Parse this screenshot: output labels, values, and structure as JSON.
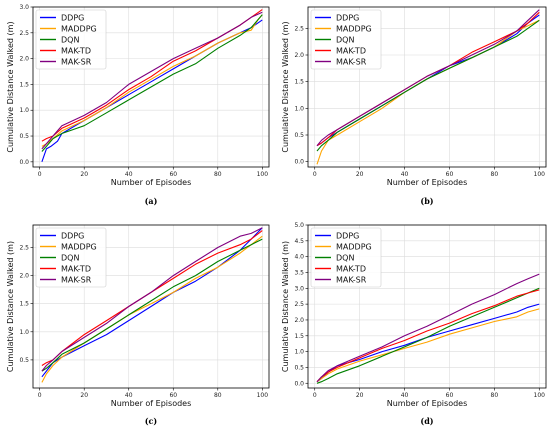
{
  "chart_data": [
    {
      "type": "line",
      "caption": "(a)",
      "xlabel": "Number of Episodes",
      "ylabel": "Cumulative Distance Walked (m)",
      "xlim": [
        -3,
        103
      ],
      "ylim": [
        -0.1,
        3.0
      ],
      "xticks": [
        0,
        20,
        40,
        60,
        80,
        100
      ],
      "yticks": [
        0.0,
        0.5,
        1.0,
        1.5,
        2.0,
        2.5,
        3.0
      ],
      "ytick_labels": [
        "0.0",
        "0.5",
        "1.0",
        "1.5",
        "2.0",
        "2.5",
        "3.0"
      ],
      "grid": true,
      "legend_position": "top-left",
      "series": [
        {
          "name": "DDPG",
          "color": "#0000ff",
          "x": [
            1,
            3,
            5,
            8,
            10,
            20,
            30,
            40,
            50,
            60,
            70,
            80,
            90,
            95,
            100
          ],
          "y": [
            0.0,
            0.25,
            0.3,
            0.4,
            0.55,
            0.8,
            1.05,
            1.3,
            1.55,
            1.8,
            2.05,
            2.3,
            2.5,
            2.6,
            2.75
          ]
        },
        {
          "name": "MADDPG",
          "color": "#ffa500",
          "x": [
            1,
            3,
            6,
            10,
            20,
            30,
            40,
            50,
            60,
            70,
            80,
            90,
            95,
            98,
            100
          ],
          "y": [
            0.3,
            0.35,
            0.45,
            0.6,
            0.8,
            1.05,
            1.35,
            1.6,
            1.85,
            2.05,
            2.3,
            2.5,
            2.55,
            2.75,
            2.85
          ]
        },
        {
          "name": "DQN",
          "color": "#008000",
          "x": [
            1,
            3,
            6,
            10,
            20,
            30,
            40,
            50,
            60,
            70,
            80,
            90,
            95,
            100
          ],
          "y": [
            0.2,
            0.3,
            0.45,
            0.55,
            0.7,
            0.95,
            1.2,
            1.45,
            1.7,
            1.9,
            2.2,
            2.45,
            2.6,
            2.85
          ]
        },
        {
          "name": "MAK-TD",
          "color": "#ff0000",
          "x": [
            1,
            3,
            6,
            10,
            20,
            30,
            40,
            50,
            60,
            70,
            80,
            90,
            95,
            100
          ],
          "y": [
            0.4,
            0.45,
            0.5,
            0.65,
            0.85,
            1.1,
            1.4,
            1.65,
            1.95,
            2.15,
            2.4,
            2.65,
            2.8,
            2.95
          ]
        },
        {
          "name": "MAK-SR",
          "color": "#800080",
          "x": [
            1,
            3,
            6,
            10,
            20,
            30,
            40,
            50,
            60,
            70,
            80,
            90,
            95,
            100
          ],
          "y": [
            0.25,
            0.35,
            0.5,
            0.7,
            0.9,
            1.15,
            1.5,
            1.75,
            2.0,
            2.2,
            2.4,
            2.65,
            2.8,
            2.9
          ]
        }
      ]
    },
    {
      "type": "line",
      "caption": "(b)",
      "xlabel": "Number of Episodes",
      "ylabel": "Cumulative Distance Walked (m)",
      "xlim": [
        -3,
        103
      ],
      "ylim": [
        -0.1,
        2.9
      ],
      "xticks": [
        0,
        20,
        40,
        60,
        80,
        100
      ],
      "yticks": [
        0.0,
        0.5,
        1.0,
        1.5,
        2.0,
        2.5
      ],
      "ytick_labels": [
        "0.0",
        "0.5",
        "1.0",
        "1.5",
        "2.0",
        "2.5"
      ],
      "grid": true,
      "legend_position": "top-left",
      "series": [
        {
          "name": "DDPG",
          "color": "#0000ff",
          "x": [
            1,
            3,
            6,
            10,
            20,
            30,
            40,
            50,
            60,
            70,
            80,
            90,
            95,
            100
          ],
          "y": [
            0.3,
            0.35,
            0.45,
            0.55,
            0.8,
            1.05,
            1.3,
            1.55,
            1.8,
            1.95,
            2.15,
            2.4,
            2.6,
            2.75
          ]
        },
        {
          "name": "MADDPG",
          "color": "#ffa500",
          "x": [
            1,
            3,
            6,
            10,
            20,
            30,
            40,
            50,
            60,
            70,
            80,
            90,
            95,
            100
          ],
          "y": [
            -0.05,
            0.2,
            0.4,
            0.5,
            0.75,
            1.0,
            1.3,
            1.55,
            1.75,
            1.95,
            2.15,
            2.45,
            2.55,
            2.65
          ]
        },
        {
          "name": "DQN",
          "color": "#008000",
          "x": [
            1,
            3,
            6,
            10,
            20,
            30,
            40,
            50,
            60,
            70,
            80,
            90,
            95,
            100
          ],
          "y": [
            0.2,
            0.3,
            0.4,
            0.55,
            0.8,
            1.05,
            1.3,
            1.55,
            1.75,
            1.95,
            2.15,
            2.35,
            2.5,
            2.65
          ]
        },
        {
          "name": "MAK-TD",
          "color": "#ff0000",
          "x": [
            1,
            3,
            6,
            10,
            20,
            30,
            40,
            50,
            60,
            70,
            80,
            90,
            95,
            100
          ],
          "y": [
            0.3,
            0.35,
            0.45,
            0.6,
            0.85,
            1.1,
            1.35,
            1.6,
            1.8,
            2.05,
            2.25,
            2.45,
            2.6,
            2.8
          ]
        },
        {
          "name": "MAK-SR",
          "color": "#800080",
          "x": [
            1,
            3,
            6,
            10,
            20,
            30,
            40,
            50,
            60,
            70,
            80,
            90,
            95,
            100
          ],
          "y": [
            0.3,
            0.4,
            0.5,
            0.6,
            0.85,
            1.1,
            1.35,
            1.6,
            1.8,
            2.0,
            2.2,
            2.45,
            2.65,
            2.85
          ]
        }
      ]
    },
    {
      "type": "line",
      "caption": "(c)",
      "xlabel": "Number of Episodes",
      "ylabel": "Cumulative Distance Walked (m)",
      "xlim": [
        -3,
        103
      ],
      "ylim": [
        0.0,
        2.9
      ],
      "xticks": [
        0,
        20,
        40,
        60,
        80,
        100
      ],
      "yticks": [
        0.5,
        1.0,
        1.5,
        2.0,
        2.5
      ],
      "ytick_labels": [
        "0.5",
        "1.0",
        "1.5",
        "2.0",
        "2.5"
      ],
      "grid": true,
      "legend_position": "top-left",
      "series": [
        {
          "name": "DDPG",
          "color": "#0000ff",
          "x": [
            1,
            3,
            6,
            10,
            20,
            30,
            40,
            50,
            60,
            70,
            80,
            90,
            95,
            100
          ],
          "y": [
            0.2,
            0.3,
            0.45,
            0.55,
            0.75,
            0.95,
            1.2,
            1.45,
            1.7,
            1.9,
            2.15,
            2.45,
            2.65,
            2.85
          ]
        },
        {
          "name": "MADDPG",
          "color": "#ffa500",
          "x": [
            1,
            3,
            6,
            10,
            20,
            30,
            40,
            50,
            60,
            70,
            80,
            90,
            95,
            100
          ],
          "y": [
            0.1,
            0.25,
            0.4,
            0.55,
            0.8,
            1.05,
            1.3,
            1.5,
            1.7,
            1.95,
            2.15,
            2.4,
            2.55,
            2.7
          ]
        },
        {
          "name": "DQN",
          "color": "#008000",
          "x": [
            1,
            3,
            6,
            10,
            20,
            30,
            40,
            50,
            60,
            70,
            80,
            90,
            95,
            100
          ],
          "y": [
            0.3,
            0.35,
            0.45,
            0.6,
            0.8,
            1.05,
            1.3,
            1.55,
            1.8,
            2.0,
            2.25,
            2.45,
            2.55,
            2.65
          ]
        },
        {
          "name": "MAK-TD",
          "color": "#ff0000",
          "x": [
            1,
            3,
            6,
            10,
            20,
            30,
            40,
            50,
            60,
            70,
            80,
            90,
            95,
            100
          ],
          "y": [
            0.4,
            0.45,
            0.5,
            0.65,
            0.95,
            1.2,
            1.45,
            1.7,
            1.95,
            2.2,
            2.4,
            2.55,
            2.65,
            2.8
          ]
        },
        {
          "name": "MAK-SR",
          "color": "#800080",
          "x": [
            1,
            3,
            6,
            10,
            20,
            30,
            40,
            50,
            60,
            70,
            80,
            90,
            95,
            100
          ],
          "y": [
            0.3,
            0.4,
            0.5,
            0.65,
            0.9,
            1.15,
            1.45,
            1.7,
            2.0,
            2.25,
            2.5,
            2.7,
            2.75,
            2.85
          ]
        }
      ]
    },
    {
      "type": "line",
      "caption": "(d)",
      "xlabel": "Number of Episodes",
      "ylabel": "Cumulative Distance Walked (m)",
      "xlim": [
        -3,
        103
      ],
      "ylim": [
        -0.15,
        5.0
      ],
      "xticks": [
        0,
        20,
        40,
        60,
        80,
        100
      ],
      "yticks": [
        0.0,
        0.5,
        1.0,
        1.5,
        2.0,
        2.5,
        3.0,
        3.5,
        4.0,
        4.5,
        5.0
      ],
      "ytick_labels": [
        "0.0",
        "0.5",
        "1.0",
        "1.5",
        "2.0",
        "2.5",
        "3.0",
        "3.5",
        "4.0",
        "4.5",
        "5.0"
      ],
      "grid": true,
      "legend_position": "top-left",
      "series": [
        {
          "name": "DDPG",
          "color": "#0000ff",
          "x": [
            1,
            3,
            6,
            10,
            20,
            30,
            40,
            50,
            60,
            70,
            80,
            90,
            95,
            100
          ],
          "y": [
            0.05,
            0.15,
            0.35,
            0.55,
            0.75,
            1.0,
            1.2,
            1.45,
            1.65,
            1.85,
            2.05,
            2.25,
            2.4,
            2.5
          ]
        },
        {
          "name": "MADDPG",
          "color": "#ffa500",
          "x": [
            1,
            3,
            6,
            10,
            20,
            30,
            40,
            50,
            60,
            70,
            80,
            90,
            95,
            100
          ],
          "y": [
            0.05,
            0.15,
            0.3,
            0.45,
            0.7,
            0.9,
            1.1,
            1.3,
            1.55,
            1.75,
            1.95,
            2.1,
            2.25,
            2.35
          ]
        },
        {
          "name": "DQN",
          "color": "#008000",
          "x": [
            1,
            3,
            6,
            10,
            20,
            30,
            40,
            50,
            60,
            70,
            80,
            90,
            95,
            100
          ],
          "y": [
            0.0,
            0.05,
            0.15,
            0.3,
            0.55,
            0.85,
            1.15,
            1.45,
            1.8,
            2.1,
            2.4,
            2.7,
            2.85,
            3.0
          ]
        },
        {
          "name": "MAK-TD",
          "color": "#ff0000",
          "x": [
            1,
            3,
            6,
            10,
            20,
            30,
            40,
            50,
            60,
            70,
            80,
            90,
            95,
            100
          ],
          "y": [
            0.05,
            0.2,
            0.35,
            0.5,
            0.8,
            1.1,
            1.35,
            1.65,
            1.9,
            2.2,
            2.45,
            2.75,
            2.85,
            2.95
          ]
        },
        {
          "name": "MAK-SR",
          "color": "#800080",
          "x": [
            1,
            3,
            6,
            10,
            20,
            30,
            40,
            50,
            60,
            70,
            80,
            90,
            95,
            100
          ],
          "y": [
            0.05,
            0.2,
            0.4,
            0.55,
            0.85,
            1.15,
            1.5,
            1.8,
            2.15,
            2.5,
            2.8,
            3.15,
            3.3,
            3.45
          ]
        }
      ]
    }
  ]
}
